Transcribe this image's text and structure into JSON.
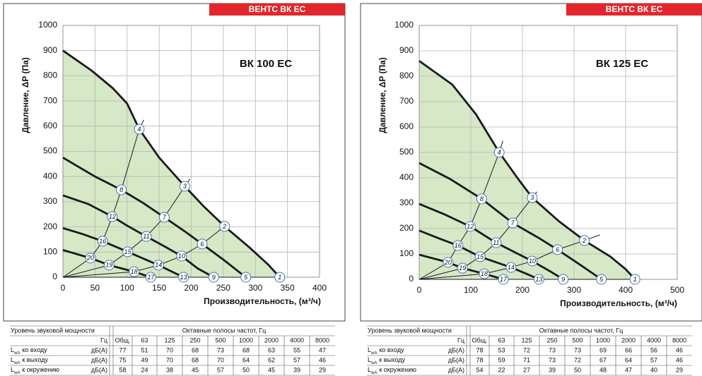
{
  "chart_data": [
    {
      "type": "line",
      "title": "ВК 100 ЕС",
      "xlabel": "Производительность, (м³/ч)",
      "ylabel": "Давление, ΔP (Па)",
      "xlim": [
        0,
        400
      ],
      "xticks": [
        0,
        50,
        100,
        150,
        200,
        250,
        300,
        350,
        400
      ],
      "ylim": [
        0,
        1000
      ],
      "yticks": [
        0,
        100,
        200,
        300,
        400,
        500,
        600,
        700,
        800,
        900,
        1000
      ],
      "grid": true,
      "fill_color": "#d6e8c6",
      "curve_color": "#1a1a1a",
      "marker_color": "#3b7bbf",
      "fan_curves": [
        {
          "x": [
            0,
            45,
            78,
            100,
            119,
            150,
            190,
            220,
            252,
            290,
            320,
            338
          ],
          "values": [
            900,
            820,
            750,
            690,
            588,
            475,
            361,
            280,
            202,
            120,
            50,
            0
          ]
        },
        {
          "x": [
            0,
            50,
            91,
            125,
            158,
            190,
            217,
            250,
            270,
            285
          ],
          "values": [
            475,
            400,
            347,
            295,
            238,
            182,
            132,
            70,
            30,
            0
          ]
        },
        {
          "x": [
            0,
            40,
            77,
            100,
            130,
            160,
            185,
            210,
            235
          ],
          "values": [
            325,
            290,
            241,
            205,
            162,
            120,
            84,
            35,
            0
          ]
        },
        {
          "x": [
            0,
            30,
            62,
            101,
            149,
            170,
            188
          ],
          "values": [
            195,
            172,
            143,
            101,
            48,
            22,
            0
          ]
        },
        {
          "x": [
            0,
            43,
            72,
            111,
            137
          ],
          "values": [
            108,
            76,
            48,
            22,
            0
          ]
        }
      ],
      "system_curves": [
        {
          "x": [
            0,
            43,
            62,
            77,
            91,
            119,
            126
          ],
          "values": [
            0,
            76,
            143,
            241,
            347,
            588,
            625
          ],
          "labels": [
            null,
            "20",
            "16",
            "12",
            "8",
            "4",
            null
          ]
        },
        {
          "x": [
            0,
            72,
            101,
            130,
            158,
            190,
            198
          ],
          "values": [
            0,
            48,
            101,
            162,
            238,
            361,
            390
          ],
          "labels": [
            null,
            "19",
            "15",
            "11",
            "7",
            "3",
            null
          ]
        },
        {
          "x": [
            0,
            111,
            149,
            185,
            217,
            252
          ],
          "values": [
            0,
            22,
            48,
            84,
            132,
            202
          ],
          "labels": [
            null,
            "18",
            "14",
            "10",
            "6",
            "2"
          ]
        },
        {
          "x": [
            0,
            137,
            188,
            235,
            285,
            338
          ],
          "values": [
            0,
            0,
            0,
            0,
            0,
            0
          ],
          "labels": [
            null,
            "17",
            "13",
            "9",
            "5",
            "1"
          ]
        }
      ]
    },
    {
      "type": "line",
      "title": "ВК 125 ЕС",
      "xlabel": "Производительность, (м³/ч)",
      "ylabel": "Давление, ΔP (Па)",
      "xlim": [
        0,
        500
      ],
      "xticks": [
        0,
        100,
        200,
        300,
        400,
        500
      ],
      "ylim": [
        0,
        1000
      ],
      "yticks": [
        0,
        100,
        200,
        300,
        400,
        500,
        600,
        700,
        800,
        900,
        1000
      ],
      "grid": true,
      "fill_color": "#d6e8c6",
      "curve_color": "#1a1a1a",
      "marker_color": "#3b7bbf",
      "fan_curves": [
        {
          "x": [
            0,
            64,
            110,
            155,
            190,
            219,
            270,
            320,
            370,
            400,
            418
          ],
          "values": [
            860,
            767,
            650,
            500,
            400,
            322,
            230,
            153,
            90,
            40,
            0
          ]
        },
        {
          "x": [
            0,
            60,
            121,
            181,
            230,
            268,
            310,
            353
          ],
          "values": [
            458,
            395,
            317,
            222,
            165,
            117,
            60,
            0
          ]
        },
        {
          "x": [
            0,
            50,
            99,
            149,
            219,
            255,
            279
          ],
          "values": [
            297,
            255,
            208,
            144,
            72,
            30,
            0
          ]
        },
        {
          "x": [
            0,
            40,
            75,
            118,
            178,
            210,
            232
          ],
          "values": [
            192,
            160,
            133,
            89,
            47,
            20,
            0
          ]
        },
        {
          "x": [
            0,
            56,
            84,
            126,
            163
          ],
          "values": [
            97,
            67,
            44,
            22,
            0
          ]
        }
      ],
      "system_curves": [
        {
          "x": [
            0,
            56,
            75,
            99,
            121,
            155,
            162
          ],
          "values": [
            0,
            67,
            133,
            208,
            317,
            500,
            545
          ],
          "labels": [
            null,
            "20",
            "16",
            "12",
            "8",
            "4",
            null
          ]
        },
        {
          "x": [
            0,
            84,
            118,
            149,
            181,
            219,
            228
          ],
          "values": [
            0,
            44,
            89,
            144,
            222,
            322,
            345
          ],
          "labels": [
            null,
            "19",
            "15",
            "11",
            "7",
            "3",
            null
          ]
        },
        {
          "x": [
            0,
            126,
            178,
            219,
            268,
            320,
            350
          ],
          "values": [
            0,
            22,
            47,
            72,
            117,
            153,
            175
          ],
          "labels": [
            null,
            "18",
            "14",
            "10",
            "6",
            "2",
            null
          ]
        },
        {
          "x": [
            0,
            163,
            232,
            279,
            353,
            418
          ],
          "values": [
            0,
            0,
            0,
            0,
            0,
            0
          ],
          "labels": [
            null,
            "17",
            "13",
            "9",
            "5",
            "1"
          ]
        }
      ]
    }
  ],
  "badges": [
    "ВЕНТС ВК ЕС",
    "ВЕНТС ВК ЕС"
  ],
  "tables": [
    {
      "title": "Уровень звуковой мощности",
      "bands_title": "Октавные полосы частот, Гц",
      "unit_header": "Гц",
      "total_header": "Общ.",
      "bands": [
        63,
        125,
        250,
        500,
        1000,
        2000,
        4000,
        8000
      ],
      "rows": [
        {
          "symbol": "L",
          "sub": "wA",
          "label": "ко входу",
          "unit": "дБ(А)",
          "values": [
            77,
            51,
            70,
            68,
            73,
            68,
            63,
            55,
            47
          ]
        },
        {
          "symbol": "L",
          "sub": "wA",
          "label": "к выходу",
          "unit": "дБ(А)",
          "values": [
            75,
            49,
            70,
            68,
            70,
            64,
            62,
            57,
            46
          ]
        },
        {
          "symbol": "L",
          "sub": "wA",
          "label": "к окружению",
          "unit": "дБ(А)",
          "values": [
            58,
            24,
            38,
            45,
            57,
            50,
            45,
            39,
            29
          ]
        }
      ]
    },
    {
      "title": "Уровень звуковой мощности",
      "bands_title": "Октавные полосы частот, Гц",
      "unit_header": "Гц",
      "total_header": "Общ.",
      "bands": [
        63,
        125,
        250,
        500,
        1000,
        2000,
        4000,
        8000
      ],
      "rows": [
        {
          "symbol": "L",
          "sub": "wA",
          "label": "ко входу",
          "unit": "дБ(А)",
          "values": [
            78,
            53,
            72,
            73,
            73,
            69,
            66,
            56,
            46
          ]
        },
        {
          "symbol": "L",
          "sub": "wA",
          "label": "к выходу",
          "unit": "дБ(А)",
          "values": [
            78,
            59,
            71,
            73,
            72,
            67,
            64,
            57,
            46
          ]
        },
        {
          "symbol": "L",
          "sub": "wA",
          "label": "к окружению",
          "unit": "дБ(А)",
          "values": [
            54,
            22,
            27,
            39,
            50,
            48,
            47,
            40,
            29
          ]
        }
      ]
    }
  ]
}
